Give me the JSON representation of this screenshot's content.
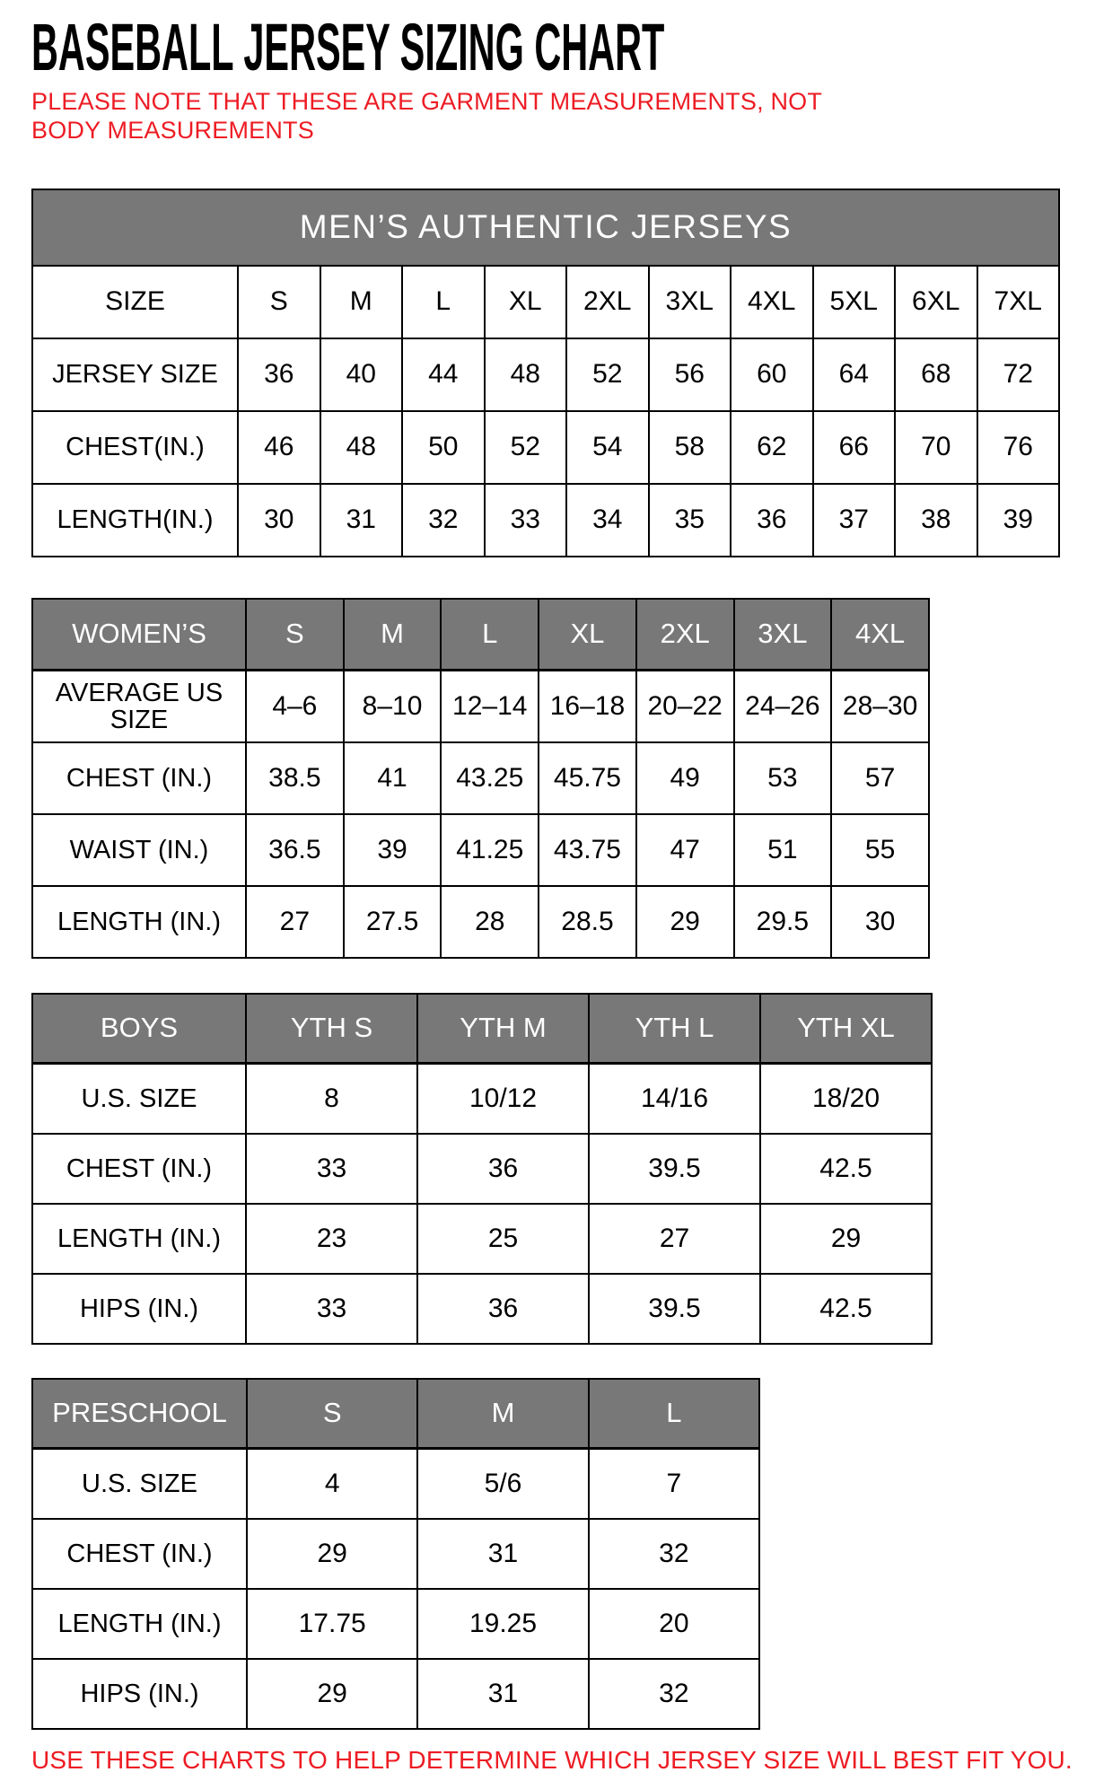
{
  "page": {
    "title": "BASEBALL JERSEY SIZING CHART",
    "note": "PLEASE NOTE THAT THESE ARE GARMENT MEASUREMENTS, NOT BODY MEASUREMENTS",
    "footer": "USE THESE CHARTS TO HELP DETERMINE WHICH JERSEY SIZE WILL BEST FIT YOU."
  },
  "colors": {
    "header_gray": "#787878",
    "accent_red": "#ed1c24",
    "border_black": "#000000",
    "header_text": "#ffffff"
  },
  "tables": [
    {
      "id": "mens",
      "banner": "MEN’S AUTHENTIC JERSEYS",
      "columns": [
        "SIZE",
        "S",
        "M",
        "L",
        "XL",
        "2XL",
        "3XL",
        "4XL",
        "5XL",
        "6XL",
        "7XL"
      ],
      "rows": [
        {
          "label": "JERSEY SIZE",
          "values": [
            "36",
            "40",
            "44",
            "48",
            "52",
            "56",
            "60",
            "64",
            "68",
            "72"
          ]
        },
        {
          "label": "CHEST(IN.)",
          "values": [
            "46",
            "48",
            "50",
            "52",
            "54",
            "58",
            "62",
            "66",
            "70",
            "76"
          ]
        },
        {
          "label": "LENGTH(IN.)",
          "values": [
            "30",
            "31",
            "32",
            "33",
            "34",
            "35",
            "36",
            "37",
            "38",
            "39"
          ]
        }
      ]
    },
    {
      "id": "womens",
      "banner": null,
      "columns": [
        "WOMEN’S",
        "S",
        "M",
        "L",
        "XL",
        "2XL",
        "3XL",
        "4XL"
      ],
      "rows": [
        {
          "label": "AVERAGE US SIZE",
          "values": [
            "4–6",
            "8–10",
            "12–14",
            "16–18",
            "20–22",
            "24–26",
            "28–30"
          ]
        },
        {
          "label": "CHEST (IN.)",
          "values": [
            "38.5",
            "41",
            "43.25",
            "45.75",
            "49",
            "53",
            "57"
          ]
        },
        {
          "label": "WAIST (IN.)",
          "values": [
            "36.5",
            "39",
            "41.25",
            "43.75",
            "47",
            "51",
            "55"
          ]
        },
        {
          "label": "LENGTH (IN.)",
          "values": [
            "27",
            "27.5",
            "28",
            "28.5",
            "29",
            "29.5",
            "30"
          ]
        }
      ]
    },
    {
      "id": "boys",
      "banner": null,
      "columns": [
        "BOYS",
        "YTH S",
        "YTH M",
        "YTH L",
        "YTH XL"
      ],
      "rows": [
        {
          "label": "U.S. SIZE",
          "values": [
            "8",
            "10/12",
            "14/16",
            "18/20"
          ]
        },
        {
          "label": "CHEST (IN.)",
          "values": [
            "33",
            "36",
            "39.5",
            "42.5"
          ]
        },
        {
          "label": "LENGTH (IN.)",
          "values": [
            "23",
            "25",
            "27",
            "29"
          ]
        },
        {
          "label": "HIPS (IN.)",
          "values": [
            "33",
            "36",
            "39.5",
            "42.5"
          ]
        }
      ]
    },
    {
      "id": "preschool",
      "banner": null,
      "columns": [
        "PRESCHOOL",
        "S",
        "M",
        "L"
      ],
      "rows": [
        {
          "label": "U.S. SIZE",
          "values": [
            "4",
            "5/6",
            "7"
          ]
        },
        {
          "label": "CHEST (IN.)",
          "values": [
            "29",
            "31",
            "32"
          ]
        },
        {
          "label": "LENGTH (IN.)",
          "values": [
            "17.75",
            "19.25",
            "20"
          ]
        },
        {
          "label": "HIPS (IN.)",
          "values": [
            "29",
            "31",
            "32"
          ]
        }
      ]
    }
  ]
}
